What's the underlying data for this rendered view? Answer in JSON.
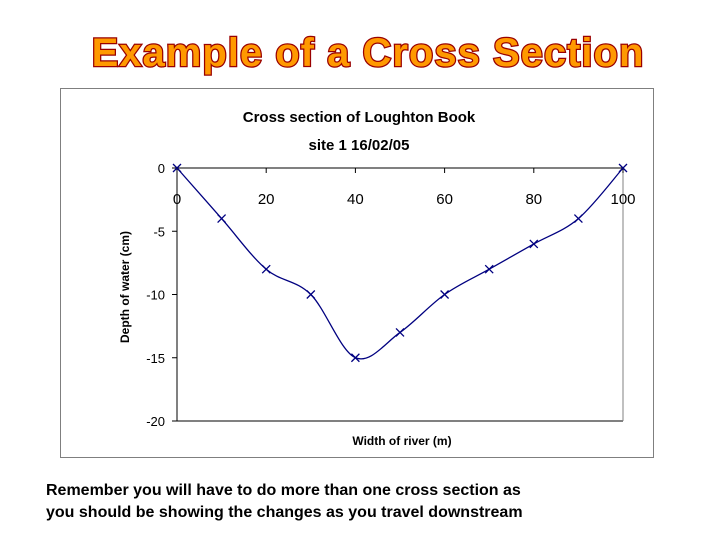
{
  "slide": {
    "title": "Example of a Cross Section",
    "title_fill": "#ff9900",
    "title_stroke": "#990000",
    "footer_line_1": "Remember you will have to do more than one cross section as",
    "footer_line_2": "you should be showing the changes as you travel downstream"
  },
  "chart_data": {
    "type": "line",
    "title": "Cross section of Loughton Book",
    "subtitle": "site 1 16/02/05",
    "xlabel": "Width of river (m)",
    "ylabel": "Depth of water (cm)",
    "xlim": [
      0,
      100
    ],
    "ylim": [
      -20,
      0
    ],
    "x_ticks": [
      0,
      20,
      40,
      60,
      80,
      100
    ],
    "y_ticks": [
      0,
      -5,
      -10,
      -15,
      -20
    ],
    "x_axis_position": "top",
    "grid": false,
    "legend": "none",
    "marker": "x",
    "line_color": "#000080",
    "series": [
      {
        "x": [
          0,
          10,
          20,
          30,
          40,
          50,
          60,
          70,
          80,
          90,
          100
        ],
        "values": [
          0,
          -4,
          -8,
          -10,
          -15,
          -13,
          -10,
          -8,
          -6,
          -4,
          0
        ]
      }
    ]
  }
}
